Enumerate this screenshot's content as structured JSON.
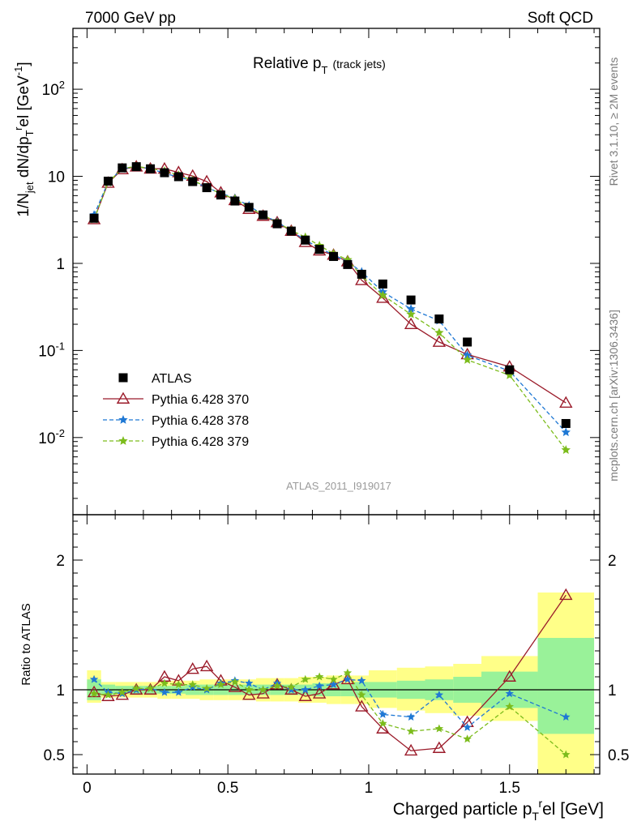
{
  "header": {
    "left": "7000 GeV pp",
    "right": "Soft QCD"
  },
  "title": {
    "main": "Relative p",
    "sub": "T",
    "suffix": "(track jets)"
  },
  "side_labels": {
    "rivet": "Rivet 3.1.10, ≥ 2M events",
    "mcplots": "mcplots.cern.ch [arXiv:1306.3436]"
  },
  "analysis_tag": "ATLAS_2011_I919017",
  "upper_ylabel": "1/N_jet dN/dp_T^rel [GeV^-1]",
  "lower_ylabel": "Ratio to ATLAS",
  "xlabel": "Charged particle p_T^rel [GeV]",
  "colors": {
    "data": "#000000",
    "p370": "#9b1b2a",
    "p378": "#1f78d4",
    "p379": "#7cbc1c",
    "band_inner": "#99f299",
    "band_outer": "#ffff88"
  },
  "chart_data": [
    {
      "type": "line",
      "panel": "main",
      "yscale": "log",
      "xlim": [
        -0.05,
        1.82
      ],
      "ylim": [
        0.0013,
        500
      ],
      "xticks": [
        "0",
        "0.5",
        "1",
        "1.5"
      ],
      "yticks": [
        "10^-2",
        "10^-1",
        "1",
        "10",
        "10^2"
      ],
      "x": [
        0.025,
        0.075,
        0.125,
        0.175,
        0.225,
        0.275,
        0.325,
        0.375,
        0.425,
        0.475,
        0.525,
        0.575,
        0.625,
        0.675,
        0.725,
        0.775,
        0.825,
        0.875,
        0.925,
        0.975,
        1.05,
        1.15,
        1.25,
        1.35,
        1.5,
        1.7
      ],
      "series": [
        {
          "name": "ATLAS",
          "values": [
            3.3,
            8.8,
            12.5,
            12.9,
            12.2,
            11.0,
            9.9,
            8.7,
            7.4,
            6.1,
            5.2,
            4.4,
            3.6,
            2.85,
            2.35,
            1.85,
            1.45,
            1.2,
            0.97,
            0.75,
            0.58,
            0.38,
            0.23,
            0.125,
            0.06,
            0.0145
          ]
        },
        {
          "name": "Pythia 6.428 370",
          "values": [
            3.2,
            8.4,
            12.0,
            12.9,
            12.2,
            12.2,
            11.1,
            10.1,
            8.7,
            6.5,
            5.3,
            4.2,
            3.5,
            2.95,
            2.35,
            1.75,
            1.4,
            1.25,
            1.05,
            0.64,
            0.4,
            0.2,
            0.125,
            0.09,
            0.065,
            0.025
          ]
        },
        {
          "name": "Pythia 6.428 378",
          "values": [
            3.6,
            8.6,
            12.2,
            12.9,
            12.3,
            10.8,
            9.8,
            8.9,
            7.4,
            6.4,
            5.6,
            4.6,
            3.6,
            3.0,
            2.35,
            1.85,
            1.5,
            1.25,
            1.05,
            0.8,
            0.47,
            0.3,
            0.22,
            0.088,
            0.058,
            0.0115
          ]
        },
        {
          "name": "Pythia 6.428 379",
          "values": [
            3.2,
            8.5,
            12.3,
            13.0,
            12.3,
            11.5,
            10.3,
            9.0,
            7.5,
            6.3,
            5.5,
            4.4,
            3.6,
            2.95,
            2.4,
            2.0,
            1.6,
            1.3,
            1.1,
            0.72,
            0.43,
            0.26,
            0.16,
            0.078,
            0.052,
            0.0072
          ]
        }
      ]
    },
    {
      "type": "line",
      "panel": "ratio",
      "ylim": [
        0.35,
        2.35
      ],
      "yticks": [
        "0.5",
        "1",
        "2"
      ],
      "x": [
        0.025,
        0.075,
        0.125,
        0.175,
        0.225,
        0.275,
        0.325,
        0.375,
        0.425,
        0.475,
        0.525,
        0.575,
        0.625,
        0.675,
        0.725,
        0.775,
        0.825,
        0.875,
        0.925,
        0.975,
        1.05,
        1.15,
        1.25,
        1.35,
        1.5,
        1.7
      ],
      "bands": {
        "inner": [
          [
            0.0,
            0.05,
            0.92,
            1.08
          ],
          [
            0.05,
            0.1,
            0.96,
            1.04
          ],
          [
            0.1,
            0.15,
            0.97,
            1.03
          ],
          [
            0.15,
            0.2,
            0.97,
            1.03
          ],
          [
            0.2,
            0.25,
            0.97,
            1.03
          ],
          [
            0.25,
            0.3,
            0.97,
            1.03
          ],
          [
            0.3,
            0.35,
            0.97,
            1.03
          ],
          [
            0.35,
            0.4,
            0.96,
            1.04
          ],
          [
            0.4,
            0.45,
            0.96,
            1.04
          ],
          [
            0.45,
            0.5,
            0.96,
            1.04
          ],
          [
            0.5,
            0.55,
            0.96,
            1.04
          ],
          [
            0.55,
            0.6,
            0.96,
            1.04
          ],
          [
            0.6,
            0.65,
            0.96,
            1.04
          ],
          [
            0.65,
            0.7,
            0.96,
            1.04
          ],
          [
            0.7,
            0.75,
            0.96,
            1.04
          ],
          [
            0.75,
            0.8,
            0.96,
            1.04
          ],
          [
            0.8,
            0.85,
            0.95,
            1.05
          ],
          [
            0.85,
            0.9,
            0.95,
            1.05
          ],
          [
            0.9,
            0.95,
            0.95,
            1.05
          ],
          [
            0.95,
            1.0,
            0.94,
            1.06
          ],
          [
            1.0,
            1.1,
            0.94,
            1.06
          ],
          [
            1.1,
            1.2,
            0.93,
            1.07
          ],
          [
            1.2,
            1.3,
            0.92,
            1.08
          ],
          [
            1.3,
            1.4,
            0.9,
            1.1
          ],
          [
            1.4,
            1.6,
            0.86,
            1.14
          ],
          [
            1.6,
            1.8,
            0.66,
            1.4
          ]
        ],
        "outer": [
          [
            0.0,
            0.05,
            0.9,
            1.15
          ],
          [
            0.05,
            0.1,
            0.94,
            1.06
          ],
          [
            0.1,
            0.15,
            0.94,
            1.06
          ],
          [
            0.15,
            0.2,
            0.94,
            1.06
          ],
          [
            0.2,
            0.25,
            0.94,
            1.06
          ],
          [
            0.25,
            0.3,
            0.93,
            1.07
          ],
          [
            0.3,
            0.35,
            0.93,
            1.07
          ],
          [
            0.35,
            0.4,
            0.93,
            1.07
          ],
          [
            0.4,
            0.45,
            0.92,
            1.08
          ],
          [
            0.45,
            0.5,
            0.92,
            1.08
          ],
          [
            0.5,
            0.55,
            0.92,
            1.08
          ],
          [
            0.55,
            0.6,
            0.92,
            1.08
          ],
          [
            0.6,
            0.65,
            0.91,
            1.09
          ],
          [
            0.65,
            0.7,
            0.91,
            1.09
          ],
          [
            0.7,
            0.75,
            0.91,
            1.09
          ],
          [
            0.75,
            0.8,
            0.9,
            1.1
          ],
          [
            0.8,
            0.85,
            0.9,
            1.1
          ],
          [
            0.85,
            0.9,
            0.89,
            1.11
          ],
          [
            0.9,
            0.95,
            0.89,
            1.11
          ],
          [
            0.95,
            1.0,
            0.89,
            1.11
          ],
          [
            1.0,
            1.1,
            0.86,
            1.15
          ],
          [
            1.1,
            1.2,
            0.84,
            1.17
          ],
          [
            1.2,
            1.3,
            0.82,
            1.18
          ],
          [
            1.3,
            1.4,
            0.8,
            1.2
          ],
          [
            1.4,
            1.6,
            0.76,
            1.26
          ],
          [
            1.6,
            1.8,
            0.35,
            1.75
          ]
        ]
      },
      "series": [
        {
          "name": "Pythia 6.428 370",
          "values": [
            0.98,
            0.95,
            0.96,
            1.0,
            1.0,
            1.1,
            1.07,
            1.16,
            1.18,
            1.07,
            1.02,
            0.96,
            0.97,
            1.04,
            1.0,
            0.95,
            0.97,
            1.04,
            1.08,
            0.87,
            0.7,
            0.53,
            0.55,
            0.75,
            1.1,
            1.73
          ]
        },
        {
          "name": "Pythia 6.428 378",
          "values": [
            1.08,
            0.98,
            0.97,
            1.0,
            1.01,
            0.98,
            0.98,
            1.02,
            1.0,
            1.05,
            1.07,
            1.05,
            1.0,
            1.05,
            1.0,
            1.0,
            1.03,
            1.04,
            1.08,
            1.07,
            0.81,
            0.79,
            0.96,
            0.71,
            0.97,
            0.79
          ]
        },
        {
          "name": "Pythia 6.428 379",
          "values": [
            0.97,
            0.96,
            0.98,
            1.01,
            1.01,
            1.05,
            1.04,
            1.04,
            1.01,
            1.04,
            1.06,
            1.0,
            1.0,
            1.03,
            1.02,
            1.08,
            1.1,
            1.08,
            1.13,
            0.96,
            0.74,
            0.68,
            0.7,
            0.62,
            0.87,
            0.5
          ]
        }
      ]
    }
  ]
}
